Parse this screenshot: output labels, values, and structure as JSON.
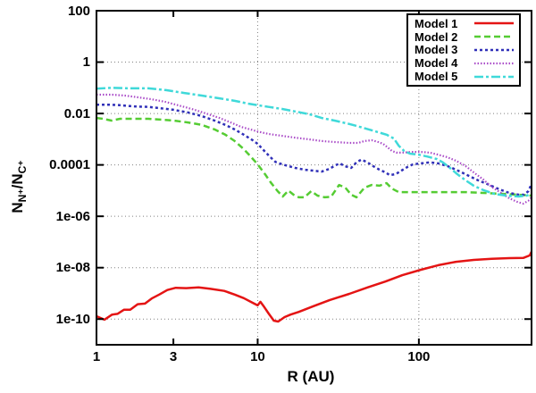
{
  "figure": {
    "x_axis_title": "R (AU)",
    "y_axis_label_parts": {
      "p1": "N",
      "s1": "N⁺",
      "p2": "/N",
      "s2": "C⁺"
    }
  },
  "chart_data": {
    "type": "line",
    "title": "",
    "xlabel": "R (AU)",
    "ylabel": "N_N+/N_C+",
    "x_scale": "log",
    "y_scale": "log",
    "xlim": [
      1,
      500
    ],
    "ylim": [
      1e-11,
      100
    ],
    "grid": true,
    "legend_position": "top-right",
    "x_ticks": [
      {
        "v": 1,
        "label": "1"
      },
      {
        "v": 3,
        "label": "3"
      },
      {
        "v": 10,
        "label": "10"
      },
      {
        "v": 100,
        "label": "100"
      }
    ],
    "y_ticks": [
      {
        "v": 100,
        "label": "100"
      },
      {
        "v": 1,
        "label": "1"
      },
      {
        "v": 0.01,
        "label": "0.01"
      },
      {
        "v": 0.0001,
        "label": "0.0001"
      },
      {
        "v": 1e-06,
        "label": "1e-06"
      },
      {
        "v": 1e-08,
        "label": "1e-08"
      },
      {
        "v": 1e-10,
        "label": "1e-10"
      }
    ],
    "grid_x": [
      10,
      100
    ],
    "grid_y": [
      1,
      0.01,
      0.0001,
      1e-06,
      1e-08,
      1e-10
    ],
    "series": [
      {
        "name": "Model 1",
        "color": "#e41414",
        "dash": "",
        "width": 2.5,
        "points": [
          [
            1,
            1.3e-10
          ],
          [
            1.12,
            9.5e-11
          ],
          [
            1.25,
            1.5e-10
          ],
          [
            1.35,
            1.6e-10
          ],
          [
            1.48,
            2.3e-10
          ],
          [
            1.62,
            2.3e-10
          ],
          [
            1.8,
            3.8e-10
          ],
          [
            2.0,
            4e-10
          ],
          [
            2.2,
            6.3e-10
          ],
          [
            2.45,
            9e-10
          ],
          [
            2.75,
            1.35e-09
          ],
          [
            3.1,
            1.65e-09
          ],
          [
            3.6,
            1.6e-09
          ],
          [
            4.3,
            1.7e-09
          ],
          [
            5.1,
            1.5e-09
          ],
          [
            6.2,
            1.25e-09
          ],
          [
            7.2,
            9e-10
          ],
          [
            8.2,
            6.5e-10
          ],
          [
            9.3,
            4.3e-10
          ],
          [
            10,
            3.4e-10
          ],
          [
            10.4,
            4.7e-10
          ],
          [
            11,
            2.9e-10
          ],
          [
            11.7,
            1.65e-10
          ],
          [
            12.6,
            8.7e-11
          ],
          [
            13.4,
            8e-11
          ],
          [
            14.7,
            1.2e-10
          ],
          [
            16,
            1.5e-10
          ],
          [
            18,
            1.9e-10
          ],
          [
            22,
            3.1e-10
          ],
          [
            28,
            5.5e-10
          ],
          [
            37,
            9.6e-10
          ],
          [
            48,
            1.7e-09
          ],
          [
            62,
            2.9e-09
          ],
          [
            79,
            5.1e-09
          ],
          [
            103,
            8.3e-09
          ],
          [
            132,
            1.25e-08
          ],
          [
            170,
            1.7e-08
          ],
          [
            219,
            2e-08
          ],
          [
            283,
            2.2e-08
          ],
          [
            364,
            2.35e-08
          ],
          [
            444,
            2.4e-08
          ],
          [
            487,
            3e-08
          ],
          [
            500,
            4.2e-08
          ]
        ]
      },
      {
        "name": "Model 2",
        "color": "#55cc33",
        "dash": "7 4",
        "width": 2.5,
        "points": [
          [
            1,
            0.0067
          ],
          [
            1.1,
            0.0062
          ],
          [
            1.24,
            0.0053
          ],
          [
            1.4,
            0.0062
          ],
          [
            1.7,
            0.0062
          ],
          [
            2.1,
            0.0062
          ],
          [
            2.5,
            0.0058
          ],
          [
            3.0,
            0.0053
          ],
          [
            3.7,
            0.0045
          ],
          [
            4.5,
            0.0036
          ],
          [
            5.4,
            0.0024
          ],
          [
            6.3,
            0.0015
          ],
          [
            7.2,
            0.00085
          ],
          [
            8.2,
            0.00041
          ],
          [
            9.0,
            0.00022
          ],
          [
            10,
            0.000105
          ],
          [
            11.1,
            4.4e-05
          ],
          [
            12.1,
            2e-05
          ],
          [
            13.3,
            9.5e-06
          ],
          [
            14.3,
            5.9e-06
          ],
          [
            15.5,
            1e-05
          ],
          [
            16.7,
            6.9e-06
          ],
          [
            18,
            5.5e-06
          ],
          [
            19.5,
            5.5e-06
          ],
          [
            21.5,
            9.5e-06
          ],
          [
            23.5,
            6.4e-06
          ],
          [
            26,
            5.5e-06
          ],
          [
            28.5,
            5.7e-06
          ],
          [
            32,
            1.65e-05
          ],
          [
            35,
            1.3e-05
          ],
          [
            38,
            6.9e-06
          ],
          [
            41,
            5.5e-06
          ],
          [
            46,
            1.3e-05
          ],
          [
            51,
            1.65e-05
          ],
          [
            57,
            1.55e-05
          ],
          [
            63,
            1.95e-05
          ],
          [
            68,
            1.2e-05
          ],
          [
            75,
            8.7e-06
          ],
          [
            90,
            8.7e-06
          ],
          [
            117,
            8.7e-06
          ],
          [
            150,
            8.7e-06
          ],
          [
            195,
            8.7e-06
          ],
          [
            251,
            8.1e-06
          ],
          [
            323,
            7.5e-06
          ],
          [
            416,
            6.9e-06
          ],
          [
            500,
            6.4e-06
          ]
        ]
      },
      {
        "name": "Model 3",
        "color": "#3030b8",
        "dash": "3 3",
        "width": 2.5,
        "points": [
          [
            1,
            0.022
          ],
          [
            1.2,
            0.022
          ],
          [
            1.4,
            0.021
          ],
          [
            1.7,
            0.019
          ],
          [
            2.1,
            0.018
          ],
          [
            2.5,
            0.016
          ],
          [
            3.0,
            0.014
          ],
          [
            3.7,
            0.011
          ],
          [
            4.5,
            0.0079
          ],
          [
            5.4,
            0.0053
          ],
          [
            6.3,
            0.0036
          ],
          [
            7.2,
            0.0024
          ],
          [
            8.2,
            0.0015
          ],
          [
            9.3,
            0.00091
          ],
          [
            10,
            0.00066
          ],
          [
            11,
            0.00035
          ],
          [
            12,
            0.0002
          ],
          [
            12.9,
            0.00013
          ],
          [
            14.2,
            0.000105
          ],
          [
            15.5,
            9e-05
          ],
          [
            17.1,
            7.6e-05
          ],
          [
            19.5,
            6.5e-05
          ],
          [
            22,
            6e-05
          ],
          [
            25,
            5.5e-05
          ],
          [
            27.8,
            7e-05
          ],
          [
            30.4,
            9.7e-05
          ],
          [
            32.4,
            0.000115
          ],
          [
            34.5,
            9e-05
          ],
          [
            38,
            7.6e-05
          ],
          [
            41,
            0.000125
          ],
          [
            44,
            0.00016
          ],
          [
            48,
            0.000125
          ],
          [
            52,
            9e-05
          ],
          [
            57,
            6.5e-05
          ],
          [
            62,
            5.1e-05
          ],
          [
            66,
            4e-05
          ],
          [
            72,
            4.4e-05
          ],
          [
            78,
            6e-05
          ],
          [
            85,
            8.3e-05
          ],
          [
            92,
            0.000105
          ],
          [
            103,
            0.000115
          ],
          [
            117,
            0.000125
          ],
          [
            132,
            0.000115
          ],
          [
            150,
            9e-05
          ],
          [
            170,
            6.5e-05
          ],
          [
            200,
            4e-05
          ],
          [
            233,
            2.5e-05
          ],
          [
            272,
            1.7e-05
          ],
          [
            318,
            1.1e-05
          ],
          [
            364,
            8.1e-06
          ],
          [
            416,
            6.9e-06
          ],
          [
            450,
            6.9e-06
          ],
          [
            478,
            9.5e-06
          ],
          [
            500,
            1.8e-05
          ]
        ]
      },
      {
        "name": "Model 4",
        "color": "#aa4cc8",
        "dash": "1.5 2",
        "width": 2.2,
        "points": [
          [
            1,
            0.054
          ],
          [
            1.25,
            0.054
          ],
          [
            1.5,
            0.05
          ],
          [
            1.8,
            0.043
          ],
          [
            2.2,
            0.036
          ],
          [
            2.7,
            0.028
          ],
          [
            3.2,
            0.021
          ],
          [
            3.9,
            0.015
          ],
          [
            4.8,
            0.01
          ],
          [
            5.8,
            0.0067
          ],
          [
            6.8,
            0.0045
          ],
          [
            7.9,
            0.003
          ],
          [
            9.0,
            0.0024
          ],
          [
            10,
            0.002
          ],
          [
            11.7,
            0.0016
          ],
          [
            14.2,
            0.00135
          ],
          [
            17,
            0.00115
          ],
          [
            21,
            0.00098
          ],
          [
            25,
            0.00085
          ],
          [
            30,
            0.00078
          ],
          [
            37,
            0.00072
          ],
          [
            42,
            0.00072
          ],
          [
            46,
            0.00085
          ],
          [
            51,
            0.00091
          ],
          [
            56,
            0.00078
          ],
          [
            60,
            0.00066
          ],
          [
            64,
            0.00048
          ],
          [
            68,
            0.00035
          ],
          [
            73,
            0.0003
          ],
          [
            79,
            0.0003
          ],
          [
            90,
            0.00032
          ],
          [
            103,
            0.00032
          ],
          [
            117,
            0.0003
          ],
          [
            132,
            0.00025
          ],
          [
            150,
            0.0002
          ],
          [
            170,
            0.000145
          ],
          [
            195,
            9e-05
          ],
          [
            219,
            5.1e-05
          ],
          [
            251,
            2.7e-05
          ],
          [
            283,
            1.4e-05
          ],
          [
            323,
            8.1e-06
          ],
          [
            364,
            5e-06
          ],
          [
            409,
            3.6e-06
          ],
          [
            444,
            3.1e-06
          ],
          [
            478,
            4e-06
          ],
          [
            500,
            5.5e-06
          ]
        ]
      },
      {
        "name": "Model 5",
        "color": "#3fd9d9",
        "dash": "10 3 3 3",
        "width": 2.5,
        "points": [
          [
            1,
            0.093
          ],
          [
            1.25,
            0.1
          ],
          [
            1.6,
            0.095
          ],
          [
            2.1,
            0.095
          ],
          [
            2.7,
            0.081
          ],
          [
            3.5,
            0.063
          ],
          [
            4.5,
            0.05
          ],
          [
            5.8,
            0.039
          ],
          [
            7.2,
            0.031
          ],
          [
            8.8,
            0.024
          ],
          [
            10,
            0.021
          ],
          [
            11.7,
            0.018
          ],
          [
            14.2,
            0.015
          ],
          [
            17.1,
            0.012
          ],
          [
            21,
            0.0093
          ],
          [
            25,
            0.0067
          ],
          [
            30,
            0.0053
          ],
          [
            37,
            0.0039
          ],
          [
            45,
            0.0028
          ],
          [
            54,
            0.002
          ],
          [
            63,
            0.0015
          ],
          [
            70,
            0.00107
          ],
          [
            75,
            0.00056
          ],
          [
            81,
            0.00035
          ],
          [
            88,
            0.000275
          ],
          [
            100,
            0.00025
          ],
          [
            113,
            0.00021
          ],
          [
            129,
            0.00017
          ],
          [
            141,
            0.000125
          ],
          [
            156,
            7.6e-05
          ],
          [
            173,
            4.4e-05
          ],
          [
            195,
            2.5e-05
          ],
          [
            219,
            1.55e-05
          ],
          [
            251,
            1.05e-05
          ],
          [
            292,
            7.5e-06
          ],
          [
            348,
            6.4e-06
          ],
          [
            416,
            5.9e-06
          ],
          [
            467,
            6.4e-06
          ],
          [
            500,
            7.5e-06
          ]
        ]
      }
    ]
  }
}
